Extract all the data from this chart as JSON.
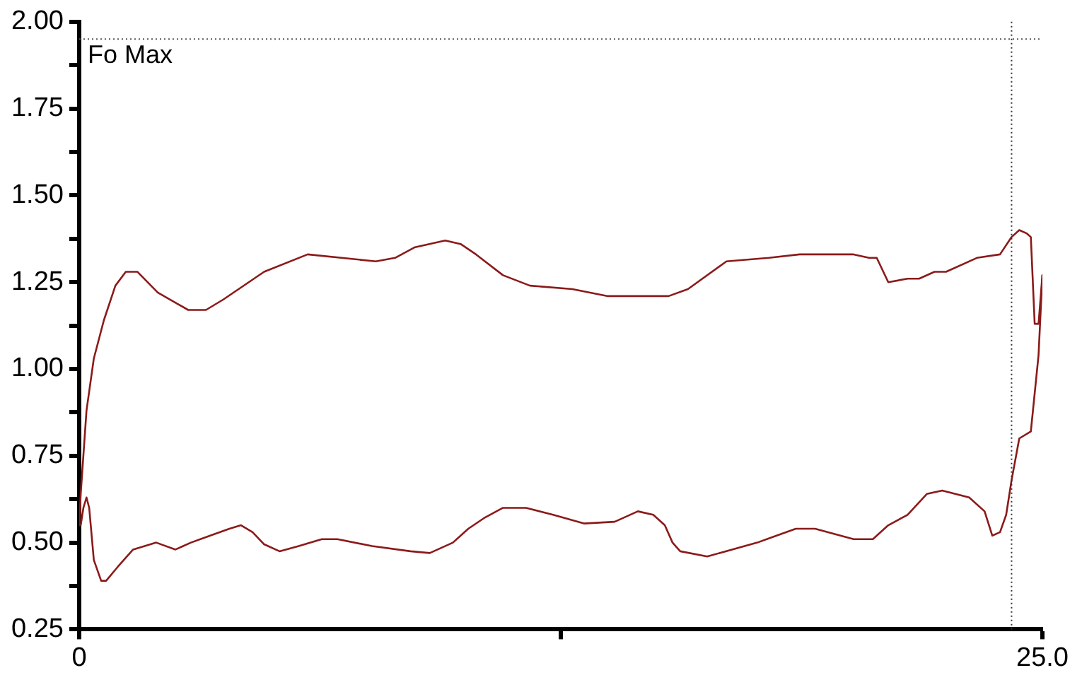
{
  "chart_data": {
    "type": "line",
    "line_style": "solid",
    "marker": "none",
    "grid": false,
    "legend": false,
    "xlim": [
      0,
      25
    ],
    "xticks": [
      0,
      {
        "value": 12.5,
        "label": null
      },
      {
        "value": 25,
        "label": "25.0"
      }
    ],
    "ylim": [
      0.25,
      2
    ],
    "yticks": [
      {
        "value": 0.25,
        "label": "0.25"
      },
      {
        "value": 0.375,
        "label": null
      },
      {
        "value": 0.5,
        "label": "0.50"
      },
      {
        "value": 0.625,
        "label": null
      },
      {
        "value": 0.75,
        "label": "0.75"
      },
      {
        "value": 0.875,
        "label": null
      },
      {
        "value": 1,
        "label": "1.00"
      },
      {
        "value": 1.125,
        "label": null
      },
      {
        "value": 1.25,
        "label": "1.25"
      },
      {
        "value": 1.375,
        "label": null
      },
      {
        "value": 1.5,
        "label": "1.50"
      },
      {
        "value": 1.625,
        "label": null
      },
      {
        "value": 1.75,
        "label": "1.75"
      },
      {
        "value": 1.875,
        "label": null
      },
      {
        "value": 2,
        "label": "2.00"
      }
    ],
    "ref_lines": [
      {
        "axis": "y",
        "value": 1.95,
        "label": "Fo Max",
        "line_style": "dotted",
        "color": "#555555"
      },
      {
        "axis": "x",
        "value": 24.2,
        "label": null,
        "line_style": "dotted",
        "color": "#333333"
      }
    ],
    "series": [
      {
        "color": "#8b1a1a",
        "x": [
          0,
          0.04,
          0.19,
          0.38,
          0.64,
          0.94,
          1.21,
          1.51,
          2.04,
          2.83,
          3.29,
          3.74,
          4.8,
          5.93,
          7.7,
          8.2,
          8.7,
          9.5,
          9.9,
          10.3,
          11.0,
          11.7,
          12.8,
          13.7,
          15.3,
          15.8,
          16.8,
          17.9,
          18.7,
          19.1,
          19.7,
          20.1,
          20.5,
          20.7,
          21.0,
          21.5,
          21.8,
          22.2,
          22.5,
          23.3,
          23.9,
          24.2,
          24.4,
          24.6,
          24.7,
          24.8,
          24.9,
          25.0
        ],
        "values": [
          0.55,
          0.64,
          0.88,
          1.03,
          1.14,
          1.24,
          1.28,
          1.28,
          1.22,
          1.17,
          1.17,
          1.2,
          1.28,
          1.33,
          1.31,
          1.32,
          1.35,
          1.37,
          1.36,
          1.33,
          1.27,
          1.24,
          1.23,
          1.21,
          1.21,
          1.23,
          1.31,
          1.32,
          1.33,
          1.33,
          1.33,
          1.33,
          1.32,
          1.32,
          1.25,
          1.26,
          1.26,
          1.28,
          1.28,
          1.32,
          1.33,
          1.38,
          1.4,
          1.39,
          1.38,
          1.13,
          1.13,
          1.27
        ]
      },
      {
        "color": "#8b1a1a",
        "x": [
          0,
          0.04,
          0.11,
          0.19,
          0.26,
          0.38,
          0.57,
          0.7,
          1.0,
          1.4,
          2.0,
          2.5,
          2.9,
          3.4,
          3.9,
          4.2,
          4.5,
          4.8,
          5.2,
          5.7,
          6.3,
          6.7,
          7.6,
          8.6,
          9.1,
          9.7,
          10.1,
          10.5,
          11.0,
          11.6,
          12.3,
          13.1,
          13.9,
          14.5,
          14.9,
          15.2,
          15.4,
          15.6,
          16.3,
          17.6,
          18.1,
          18.6,
          19.1,
          20.1,
          20.6,
          21.0,
          21.5,
          22.0,
          22.4,
          23.1,
          23.5,
          23.7,
          23.9,
          24.06,
          24.2,
          24.4,
          24.7,
          24.9,
          25.0
        ],
        "values": [
          0.55,
          0.55,
          0.6,
          0.63,
          0.6,
          0.45,
          0.39,
          0.39,
          0.43,
          0.48,
          0.5,
          0.48,
          0.5,
          0.52,
          0.54,
          0.55,
          0.53,
          0.495,
          0.475,
          0.49,
          0.51,
          0.51,
          0.49,
          0.475,
          0.47,
          0.5,
          0.54,
          0.57,
          0.6,
          0.6,
          0.58,
          0.555,
          0.56,
          0.59,
          0.58,
          0.55,
          0.5,
          0.475,
          0.46,
          0.5,
          0.52,
          0.54,
          0.54,
          0.51,
          0.51,
          0.55,
          0.58,
          0.64,
          0.65,
          0.63,
          0.59,
          0.52,
          0.53,
          0.58,
          0.68,
          0.8,
          0.82,
          1.04,
          1.27
        ]
      }
    ]
  }
}
